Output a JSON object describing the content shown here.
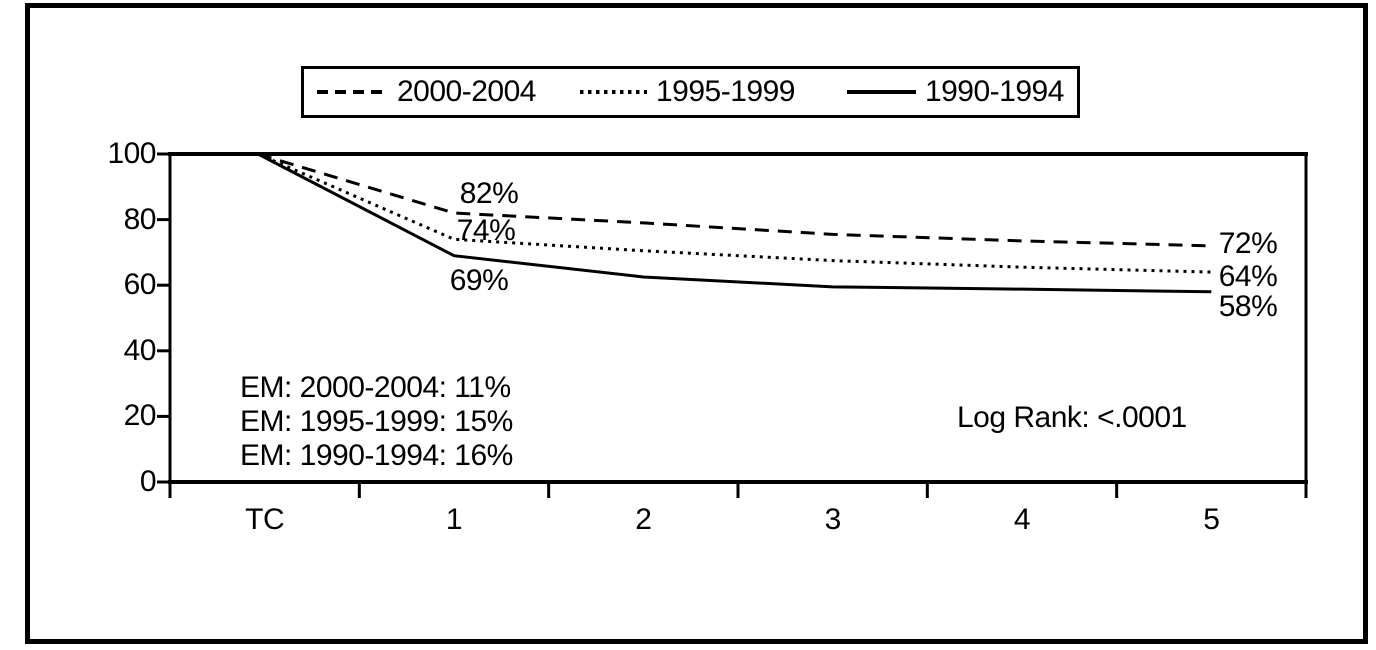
{
  "colors": {
    "foreground": "#000000",
    "background": "#ffffff"
  },
  "legend": {
    "items": [
      {
        "label": "2000-2004",
        "line_style": "dashed"
      },
      {
        "label": "1995-1999",
        "line_style": "dotted"
      },
      {
        "label": "1990-1994",
        "line_style": "solid"
      }
    ]
  },
  "chart_data": {
    "type": "line",
    "categories": [
      "TC",
      "1",
      "2",
      "3",
      "4",
      "5"
    ],
    "series": [
      {
        "name": "2000-2004",
        "line_style": "dashed",
        "values": [
          100,
          82,
          79,
          75.5,
          73.5,
          72
        ]
      },
      {
        "name": "1995-1999",
        "line_style": "dotted",
        "values": [
          100,
          74,
          70.5,
          67.5,
          65.5,
          64
        ]
      },
      {
        "name": "1990-1994",
        "line_style": "solid",
        "values": [
          100,
          69,
          62.5,
          59.5,
          58.8,
          58
        ]
      }
    ],
    "ylim": [
      0,
      100
    ],
    "yticks": [
      0,
      20,
      40,
      60,
      80,
      100
    ],
    "grid": false,
    "legend_position": "top-center",
    "point_labels": [
      {
        "text": "82%",
        "series": "2000-2004",
        "x": "1"
      },
      {
        "text": "74%",
        "series": "1995-1999",
        "x": "1"
      },
      {
        "text": "69%",
        "series": "1990-1994",
        "x": "1"
      },
      {
        "text": "72%",
        "series": "2000-2004",
        "x": "5"
      },
      {
        "text": "64%",
        "series": "1995-1999",
        "x": "5"
      },
      {
        "text": "58%",
        "series": "1990-1994",
        "x": "5"
      }
    ],
    "stat_annotations": {
      "em_lines": [
        "EM: 2000-2004: 11%",
        "EM: 1995-1999: 15%",
        "EM: 1990-1994: 16%"
      ],
      "log_rank": "Log Rank: <.0001"
    }
  }
}
